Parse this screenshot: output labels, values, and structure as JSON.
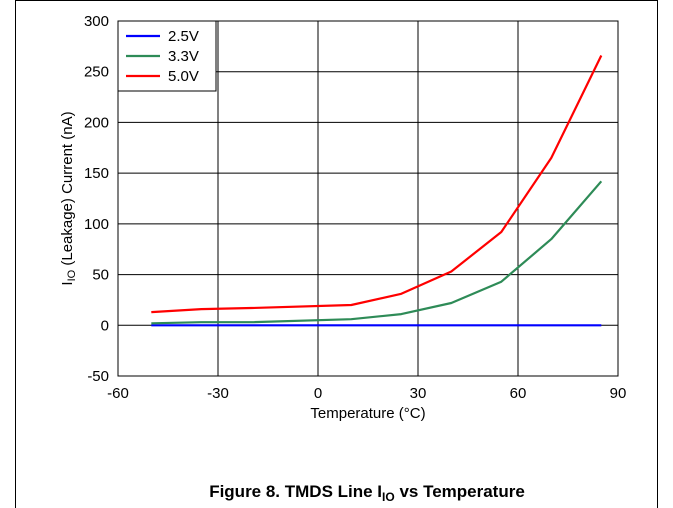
{
  "chart_data": {
    "type": "line",
    "title": "",
    "xlabel": "Temperature (°C)",
    "ylabel": {
      "prefix": "I",
      "subscript": "IO",
      "rest": " (Leakage) Current (nA)"
    },
    "caption": {
      "prefix": "Figure 8. TMDS Line I",
      "subscript": "IO",
      "rest": " vs Temperature"
    },
    "xlim": [
      -60,
      90
    ],
    "ylim": [
      -50,
      300
    ],
    "xticks": [
      -60,
      -30,
      0,
      30,
      60,
      90
    ],
    "yticks": [
      -50,
      0,
      50,
      100,
      150,
      200,
      250,
      300
    ],
    "grid": true,
    "legend_position": "top-left",
    "series": [
      {
        "name": "2.5V",
        "color": "#0000ff",
        "x": [
          -50,
          -35,
          -20,
          10,
          25,
          40,
          55,
          70,
          85
        ],
        "y": [
          0,
          0,
          0,
          0,
          0,
          0,
          0,
          0,
          0
        ]
      },
      {
        "name": "3.3V",
        "color": "#2e8b57",
        "x": [
          -50,
          -35,
          -20,
          10,
          25,
          40,
          55,
          70,
          85
        ],
        "y": [
          2,
          3,
          3,
          6,
          11,
          22,
          43,
          85,
          142
        ]
      },
      {
        "name": "5.0V",
        "color": "#ff0000",
        "x": [
          -50,
          -35,
          -20,
          10,
          25,
          40,
          55,
          70,
          85
        ],
        "y": [
          13,
          16,
          17,
          20,
          31,
          53,
          92,
          165,
          266
        ]
      }
    ]
  }
}
